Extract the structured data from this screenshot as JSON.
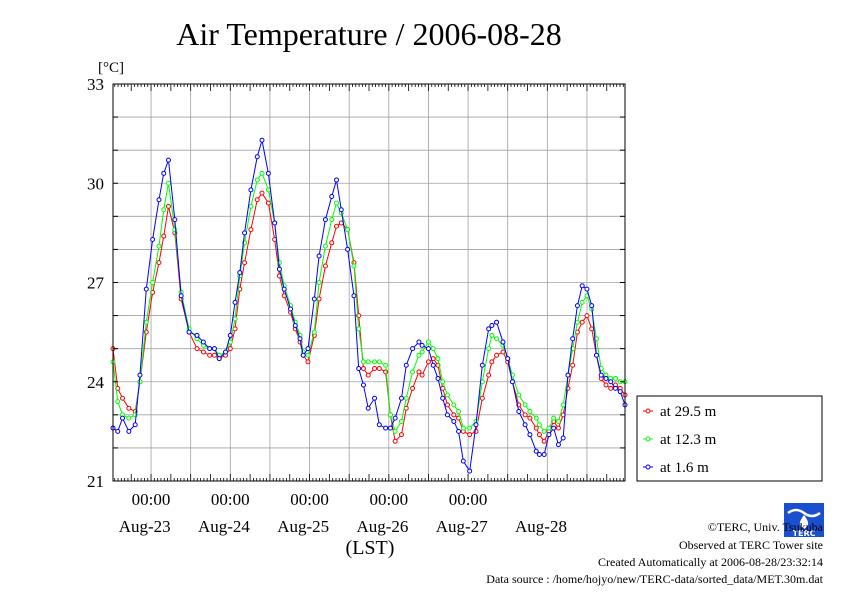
{
  "chart_data": {
    "type": "line",
    "title": "Air Temperature / 2006-08-28",
    "ylabel": "[°C]",
    "xlabel": "(LST)",
    "ylim": [
      21,
      33
    ],
    "yticks": [
      "21",
      "24",
      "27",
      "30",
      "33"
    ],
    "xlim_days": [
      22.52,
      28.98
    ],
    "time_ticks": [
      {
        "day": 23,
        "label": "00:00"
      },
      {
        "day": 24,
        "label": "00:00"
      },
      {
        "day": 25,
        "label": "00:00"
      },
      {
        "day": 26,
        "label": "00:00"
      },
      {
        "day": 27,
        "label": "00:00"
      }
    ],
    "date_labels": [
      {
        "day": 22.92,
        "label": "Aug-23"
      },
      {
        "day": 23.92,
        "label": "Aug-24"
      },
      {
        "day": 24.92,
        "label": "Aug-25"
      },
      {
        "day": 25.92,
        "label": "Aug-26"
      },
      {
        "day": 26.92,
        "label": "Aug-27"
      },
      {
        "day": 27.92,
        "label": "Aug-28"
      }
    ],
    "grid": true,
    "legend_position": "right",
    "series": [
      {
        "name": "at 29.5 m",
        "color": "#ff0000",
        "x": [
          22.52,
          22.58,
          22.64,
          22.72,
          22.8,
          22.86,
          22.94,
          23.02,
          23.1,
          23.16,
          23.22,
          23.3,
          23.38,
          23.48,
          23.58,
          23.66,
          23.74,
          23.8,
          23.86,
          23.94,
          24.0,
          24.06,
          24.12,
          24.18,
          24.26,
          24.34,
          24.4,
          24.48,
          24.56,
          24.62,
          24.68,
          24.76,
          24.82,
          24.88,
          24.92,
          24.98,
          25.06,
          25.12,
          25.2,
          25.28,
          25.34,
          25.4,
          25.48,
          25.56,
          25.62,
          25.68,
          25.74,
          25.82,
          25.88,
          25.96,
          26.02,
          26.08,
          26.16,
          26.22,
          26.3,
          26.38,
          26.42,
          26.5,
          26.56,
          26.62,
          26.68,
          26.74,
          26.82,
          26.88,
          26.94,
          27.02,
          27.1,
          27.18,
          27.26,
          27.3,
          27.36,
          27.44,
          27.5,
          27.56,
          27.64,
          27.72,
          27.78,
          27.86,
          27.9,
          27.96,
          28.02,
          28.08,
          28.14,
          28.2,
          28.26,
          28.32,
          28.38,
          28.44,
          28.5,
          28.56,
          28.62,
          28.68,
          28.74,
          28.8,
          28.86,
          28.92,
          28.98
        ],
        "values": [
          25.0,
          23.8,
          23.5,
          23.2,
          23.1,
          24.0,
          25.5,
          26.7,
          27.6,
          28.4,
          29.3,
          28.5,
          26.5,
          25.5,
          25.0,
          24.9,
          24.8,
          24.8,
          24.7,
          24.8,
          25.0,
          25.6,
          26.8,
          27.6,
          28.6,
          29.5,
          29.7,
          29.4,
          28.3,
          27.2,
          26.6,
          26.1,
          25.6,
          25.2,
          24.8,
          24.6,
          25.4,
          26.5,
          27.5,
          28.2,
          28.7,
          28.8,
          28.6,
          27.6,
          26.0,
          24.4,
          24.2,
          24.4,
          24.4,
          24.3,
          23.0,
          22.2,
          22.4,
          23.2,
          23.8,
          24.3,
          24.2,
          24.6,
          24.7,
          24.5,
          23.8,
          23.3,
          23.0,
          22.9,
          22.5,
          22.4,
          22.5,
          23.5,
          24.2,
          24.6,
          24.8,
          24.9,
          24.6,
          24.0,
          23.3,
          23.0,
          22.9,
          22.6,
          22.4,
          22.2,
          22.5,
          22.8,
          22.6,
          23.0,
          23.8,
          24.5,
          25.5,
          25.8,
          26.0,
          25.6,
          24.8,
          24.1,
          23.9,
          23.8,
          23.9,
          23.8,
          23.6
        ]
      },
      {
        "name": "at 12.3 m",
        "color": "#00ff00",
        "x": [
          22.52,
          22.58,
          22.64,
          22.72,
          22.8,
          22.86,
          22.94,
          23.02,
          23.1,
          23.16,
          23.22,
          23.3,
          23.38,
          23.48,
          23.58,
          23.66,
          23.74,
          23.8,
          23.86,
          23.94,
          24.0,
          24.06,
          24.12,
          24.18,
          24.26,
          24.34,
          24.4,
          24.48,
          24.56,
          24.62,
          24.68,
          24.76,
          24.82,
          24.88,
          24.92,
          24.98,
          25.06,
          25.12,
          25.2,
          25.28,
          25.34,
          25.4,
          25.48,
          25.56,
          25.62,
          25.68,
          25.74,
          25.82,
          25.88,
          25.96,
          26.02,
          26.08,
          26.16,
          26.22,
          26.3,
          26.38,
          26.42,
          26.5,
          26.56,
          26.62,
          26.68,
          26.74,
          26.82,
          26.88,
          26.94,
          27.02,
          27.1,
          27.18,
          27.26,
          27.3,
          27.36,
          27.44,
          27.5,
          27.56,
          27.64,
          27.72,
          27.78,
          27.86,
          27.9,
          27.96,
          28.02,
          28.08,
          28.14,
          28.2,
          28.26,
          28.32,
          28.38,
          28.44,
          28.5,
          28.56,
          28.62,
          28.68,
          28.74,
          28.8,
          28.86,
          28.92,
          28.98
        ],
        "values": [
          24.6,
          23.4,
          23.0,
          22.9,
          23.0,
          24.0,
          25.8,
          27.0,
          28.1,
          29.2,
          30.0,
          28.6,
          26.7,
          25.6,
          25.3,
          25.1,
          25.0,
          25.0,
          24.8,
          24.9,
          25.2,
          25.9,
          27.2,
          28.2,
          29.3,
          30.1,
          30.3,
          29.8,
          28.8,
          27.6,
          26.9,
          26.3,
          25.8,
          25.4,
          24.9,
          24.8,
          25.5,
          27.0,
          28.1,
          28.9,
          29.4,
          29.1,
          28.6,
          27.5,
          25.6,
          24.6,
          24.6,
          24.6,
          24.6,
          24.5,
          23.0,
          22.5,
          22.8,
          23.5,
          24.3,
          24.8,
          24.9,
          25.2,
          25.0,
          24.7,
          24.0,
          23.6,
          23.3,
          23.1,
          22.6,
          22.6,
          22.8,
          24.0,
          25.0,
          25.4,
          25.3,
          25.1,
          24.7,
          24.2,
          23.6,
          23.3,
          23.1,
          22.9,
          22.7,
          22.5,
          22.6,
          22.9,
          22.8,
          23.3,
          24.2,
          25.0,
          25.8,
          26.4,
          26.6,
          26.2,
          25.3,
          24.4,
          24.2,
          24.1,
          24.1,
          24.0,
          24.0
        ]
      },
      {
        "name": "at 1.6 m",
        "color": "#0000ff",
        "x": [
          22.52,
          22.58,
          22.64,
          22.72,
          22.8,
          22.86,
          22.94,
          23.02,
          23.1,
          23.16,
          23.22,
          23.3,
          23.38,
          23.48,
          23.58,
          23.66,
          23.74,
          23.8,
          23.86,
          23.94,
          24.0,
          24.06,
          24.12,
          24.18,
          24.26,
          24.34,
          24.4,
          24.48,
          24.56,
          24.62,
          24.68,
          24.76,
          24.82,
          24.88,
          24.92,
          24.98,
          25.06,
          25.12,
          25.2,
          25.28,
          25.34,
          25.4,
          25.48,
          25.56,
          25.62,
          25.68,
          25.74,
          25.82,
          25.88,
          25.96,
          26.02,
          26.08,
          26.16,
          26.22,
          26.3,
          26.38,
          26.42,
          26.5,
          26.56,
          26.62,
          26.68,
          26.74,
          26.82,
          26.88,
          26.94,
          27.02,
          27.1,
          27.18,
          27.26,
          27.3,
          27.36,
          27.44,
          27.5,
          27.56,
          27.64,
          27.72,
          27.78,
          27.86,
          27.9,
          27.96,
          28.02,
          28.08,
          28.14,
          28.2,
          28.26,
          28.32,
          28.38,
          28.44,
          28.5,
          28.56,
          28.62,
          28.68,
          28.74,
          28.8,
          28.86,
          28.92,
          28.98
        ],
        "values": [
          22.6,
          22.5,
          22.9,
          22.5,
          22.7,
          24.2,
          26.8,
          28.3,
          29.5,
          30.3,
          30.7,
          28.9,
          26.6,
          25.5,
          25.4,
          25.2,
          25.0,
          25.0,
          24.7,
          24.9,
          25.4,
          26.4,
          27.3,
          28.5,
          29.8,
          30.8,
          31.3,
          30.3,
          28.8,
          27.4,
          26.8,
          26.2,
          25.7,
          25.3,
          24.8,
          25.0,
          26.5,
          27.8,
          28.9,
          29.6,
          30.1,
          29.2,
          28.0,
          26.6,
          24.4,
          23.9,
          23.2,
          23.5,
          22.7,
          22.6,
          22.6,
          22.9,
          23.5,
          24.5,
          25.0,
          25.2,
          25.1,
          25.0,
          24.5,
          24.1,
          23.5,
          23.0,
          22.8,
          22.5,
          21.6,
          21.3,
          22.7,
          24.5,
          25.6,
          25.7,
          25.8,
          25.2,
          24.7,
          24.0,
          23.1,
          22.7,
          22.4,
          21.9,
          21.8,
          21.8,
          22.4,
          22.6,
          22.1,
          22.3,
          24.2,
          25.3,
          26.3,
          26.9,
          26.8,
          26.3,
          24.8,
          24.2,
          24.1,
          24.0,
          23.8,
          23.7,
          23.3
        ]
      }
    ]
  },
  "credits": {
    "copyright": "©TERC, Univ. Tsukuba",
    "observed": "Observed at TERC Tower site",
    "created": "Created Automatically at 2006-08-28/23:32:14",
    "source": "Data source : /home/hojyo/new/TERC-data/sorted_data/MET.30m.dat",
    "logo_text": "TERC"
  }
}
